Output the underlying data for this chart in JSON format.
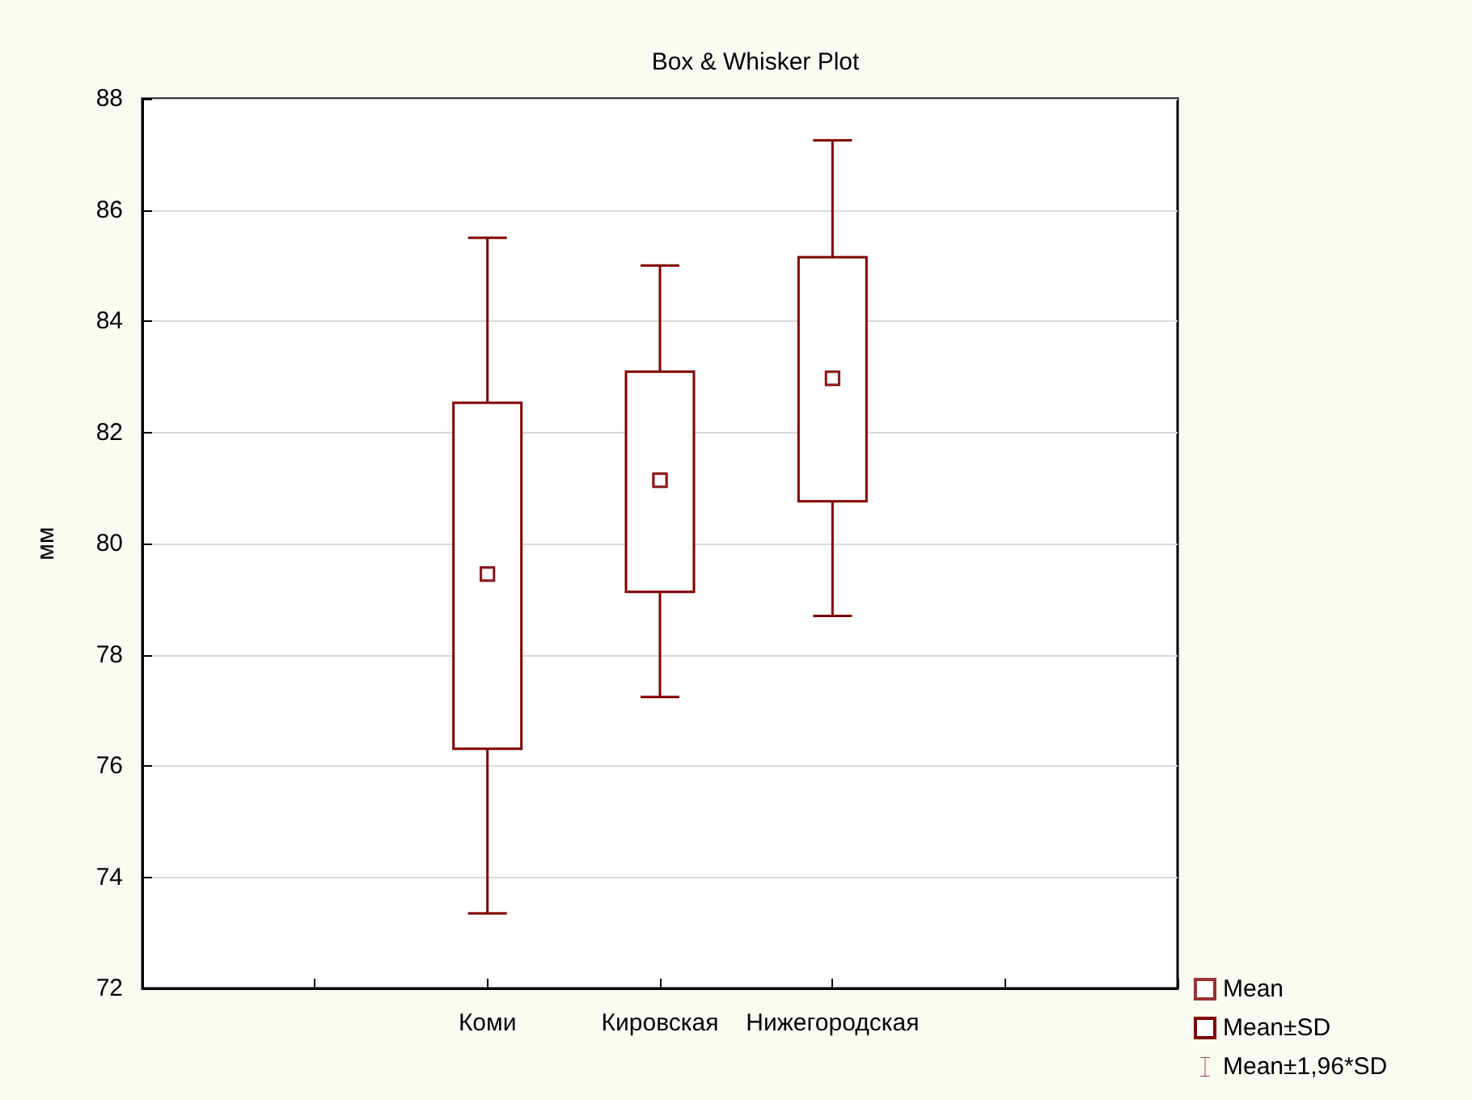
{
  "chart_data": {
    "type": "bar",
    "title": "Box & Whisker Plot",
    "ylabel": "мм",
    "categories": [
      null,
      null,
      "Коми",
      "Кировская",
      "Нижегородская",
      null,
      null
    ],
    "ylim": [
      72,
      88
    ],
    "yticks": [
      72,
      74,
      76,
      78,
      80,
      82,
      84,
      86,
      88
    ],
    "grid": "y",
    "legend": "bottom right",
    "series": [
      {
        "name": "Mean",
        "type": "scatter",
        "marker": "square",
        "color": "#800000",
        "values": [
          null,
          null,
          79.45,
          81.14,
          82.97,
          null,
          null
        ]
      },
      {
        "name": "Mean±SD",
        "color": "#800000",
        "base": [
          null,
          null,
          76.31,
          79.13,
          80.76,
          null,
          null
        ],
        "values": [
          null,
          null,
          6.22,
          3.96,
          4.39,
          null,
          null
        ]
      },
      {
        "name": "Mean±1,96*SD",
        "type": "scatter",
        "marker": "square",
        "color": "#800000",
        "values": [
          null,
          null,
          79.45,
          81.14,
          82.97,
          null,
          null
        ],
        "errors": [
          null,
          null,
          [
            73.35,
            85.5
          ],
          [
            77.24,
            85.0
          ],
          [
            78.7,
            87.25
          ],
          null,
          null
        ]
      }
    ]
  }
}
